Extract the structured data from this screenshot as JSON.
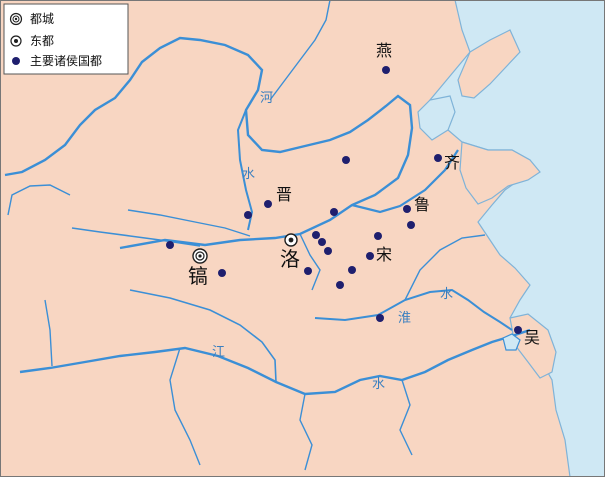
{
  "legend": {
    "items": [
      {
        "symbol": "capital",
        "label": "都城"
      },
      {
        "symbol": "east_capital",
        "label": "东都"
      },
      {
        "symbol": "vassal",
        "label": "主要诸侯国都"
      }
    ]
  },
  "colors": {
    "land": "#f8d6c2",
    "sea": "#cfe8f4",
    "river": "#3b8fd6",
    "coast": "#7fb3d8",
    "marker": "#1f1f6e",
    "border": "#555555"
  },
  "places": {
    "hao": "镐",
    "luo": "洛",
    "jin": "晋",
    "yan": "燕",
    "qi": "齐",
    "lu": "鲁",
    "song": "宋",
    "wu": "吴"
  },
  "rivers": {
    "he_1": "河",
    "he_2": "水",
    "jiang_1": "江",
    "jiang_2": "水",
    "huai_1": "淮",
    "huai_2": "水"
  }
}
